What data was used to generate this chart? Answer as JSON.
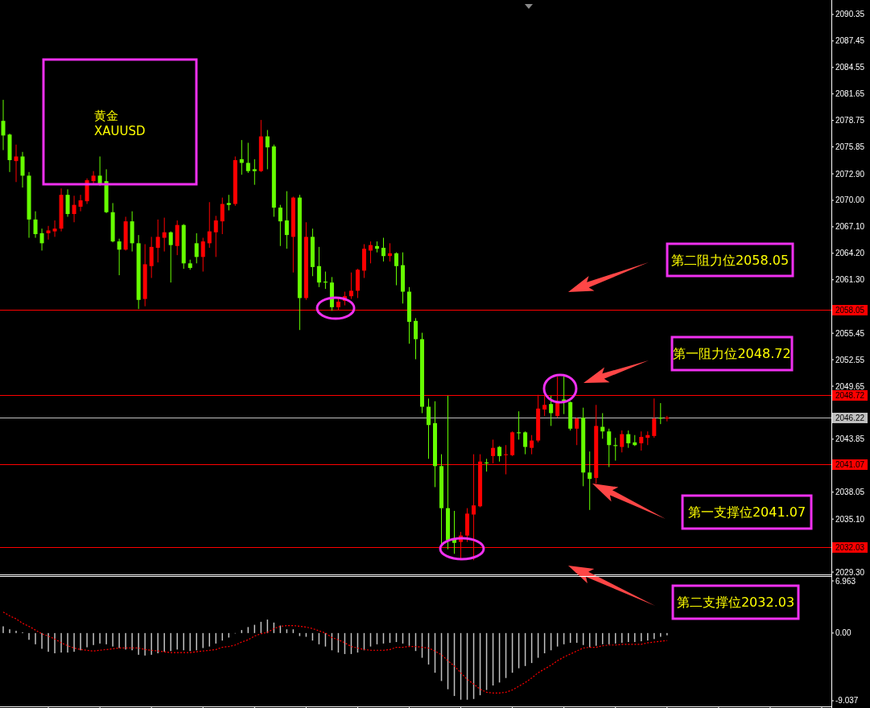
{
  "chart_data": [
    {
      "type": "candlestick",
      "title": "黄金",
      "subtitle": "XAUUSD",
      "categories": [
        null,
        null,
        null,
        null,
        null,
        null,
        null,
        null,
        null,
        null,
        null,
        null,
        null,
        null,
        null,
        null,
        null,
        null,
        null,
        null,
        null,
        null,
        null,
        null,
        null,
        null,
        null,
        null,
        null,
        null,
        null,
        null,
        null,
        null,
        null,
        null,
        null,
        null,
        null,
        null,
        null,
        null,
        null,
        null,
        null,
        null,
        null,
        null,
        null,
        null,
        null,
        null,
        null,
        null,
        null,
        null,
        null,
        null,
        null,
        null,
        null,
        null,
        null,
        null,
        null,
        null,
        null,
        null,
        null,
        null,
        null,
        null,
        null,
        null,
        null,
        null,
        null,
        null,
        null,
        null,
        null,
        null,
        null,
        null,
        null,
        null,
        null,
        null,
        null,
        null,
        null,
        null,
        null,
        null,
        null,
        null,
        null,
        null,
        null,
        null,
        null,
        null,
        null,
        null,
        null,
        null,
        null,
        null,
        null,
        null,
        null,
        null,
        null,
        null,
        null,
        null,
        null,
        null,
        null,
        null,
        null,
        null,
        null,
        null,
        null,
        null,
        null,
        null,
        null
      ],
      "ohlc": [
        [
          2078.7,
          2081.0,
          2075.5,
          2077.1
        ],
        [
          2077.2,
          2077.3,
          2073.1,
          2074.4
        ],
        [
          2074.3,
          2076.1,
          2072.0,
          2074.8
        ],
        [
          2074.8,
          2075.3,
          2071.4,
          2072.7
        ],
        [
          2072.7,
          2073.1,
          2065.9,
          2067.9
        ],
        [
          2067.9,
          2068.8,
          2065.9,
          2066.3
        ],
        [
          2066.4,
          2066.9,
          2064.5,
          2065.3
        ],
        [
          2066.4,
          2067.2,
          2065.7,
          2066.7
        ],
        [
          2066.6,
          2067.8,
          2066.0,
          2066.9
        ],
        [
          2066.9,
          2071.3,
          2066.6,
          2070.6
        ],
        [
          2070.6,
          2071.2,
          2068.2,
          2068.5
        ],
        [
          2068.5,
          2070.5,
          2067.6,
          2069.5
        ],
        [
          2069.3,
          2070.6,
          2068.8,
          2070.0
        ],
        [
          2069.9,
          2072.4,
          2069.6,
          2072.2
        ],
        [
          2072.1,
          2073.2,
          2071.8,
          2072.7
        ],
        [
          2072.7,
          2074.8,
          2071.6,
          2071.7
        ],
        [
          2072.1,
          2073.4,
          2068.6,
          2068.7
        ],
        [
          2068.7,
          2069.7,
          2065.4,
          2065.5
        ],
        [
          2065.5,
          2065.8,
          2061.8,
          2064.6
        ],
        [
          2064.6,
          2068.2,
          2064.5,
          2067.7
        ],
        [
          2067.7,
          2068.8,
          2064.4,
          2065.3
        ],
        [
          2065.3,
          2066.2,
          2058.1,
          2059.1
        ],
        [
          2059.2,
          2065.2,
          2058.4,
          2063.0
        ],
        [
          2062.8,
          2066.0,
          2061.5,
          2064.9
        ],
        [
          2064.8,
          2067.9,
          2063.2,
          2066.0
        ],
        [
          2065.9,
          2068.1,
          2064.4,
          2066.5
        ],
        [
          2066.5,
          2066.6,
          2061.0,
          2065.1
        ],
        [
          2065.0,
          2067.8,
          2064.0,
          2067.3
        ],
        [
          2067.3,
          2067.4,
          2062.5,
          2063.1
        ],
        [
          2063.1,
          2063.5,
          2062.4,
          2062.6
        ],
        [
          2065.3,
          2066.4,
          2063.1,
          2063.8
        ],
        [
          2063.8,
          2065.9,
          2062.2,
          2065.5
        ],
        [
          2065.3,
          2069.8,
          2064.8,
          2066.6
        ],
        [
          2066.5,
          2068.3,
          2063.8,
          2067.8
        ],
        [
          2067.7,
          2070.3,
          2066.3,
          2069.6
        ],
        [
          2069.7,
          2070.6,
          2068.9,
          2069.5
        ],
        [
          2069.6,
          2074.8,
          2069.4,
          2074.4
        ],
        [
          2074.5,
          2076.6,
          2072.8,
          2074.1
        ],
        [
          2074.1,
          2076.3,
          2073.0,
          2073.2
        ],
        [
          2073.4,
          2074.5,
          2071.7,
          2073.2
        ],
        [
          2073.2,
          2078.8,
          2073.1,
          2077.0
        ],
        [
          2077.0,
          2077.7,
          2073.4,
          2075.8
        ],
        [
          2075.9,
          2076.1,
          2068.2,
          2069.2
        ],
        [
          2069.2,
          2069.5,
          2065.0,
          2067.7
        ],
        [
          2067.8,
          2071.0,
          2064.7,
          2066.2
        ],
        [
          2066.0,
          2070.4,
          2062.1,
          2070.3
        ],
        [
          2070.3,
          2070.6,
          2055.8,
          2059.3
        ],
        [
          2059.3,
          2067.6,
          2059.1,
          2066.0
        ],
        [
          2066.0,
          2066.9,
          2061.7,
          2062.7
        ],
        [
          2062.8,
          2064.9,
          2060.5,
          2061.0
        ],
        [
          2061.1,
          2062.2,
          2060.3,
          2061.0
        ],
        [
          2061.0,
          2061.6,
          2057.9,
          2058.3
        ],
        [
          2058.3,
          2059.3,
          2058.0,
          2058.9
        ],
        [
          2059.0,
          2060.0,
          2058.5,
          2059.5
        ],
        [
          2059.5,
          2062.1,
          2059.2,
          2060.1
        ],
        [
          2060.1,
          2062.5,
          2059.3,
          2062.4
        ],
        [
          2062.3,
          2065.2,
          2061.5,
          2064.7
        ],
        [
          2064.5,
          2065.5,
          2063.1,
          2065.1
        ],
        [
          2065.0,
          2065.5,
          2064.3,
          2064.7
        ],
        [
          2064.8,
          2065.9,
          2063.3,
          2063.9
        ],
        [
          2063.9,
          2065.3,
          2063.3,
          2064.2
        ],
        [
          2064.2,
          2064.3,
          2060.7,
          2062.8
        ],
        [
          2062.9,
          2064.3,
          2058.7,
          2060.0
        ],
        [
          2060.0,
          2060.5,
          2054.3,
          2056.7
        ],
        [
          2056.8,
          2057.1,
          2052.6,
          2054.8
        ],
        [
          2054.8,
          2055.5,
          2046.7,
          2047.4
        ],
        [
          2047.4,
          2048.3,
          2041.7,
          2045.4
        ],
        [
          2045.6,
          2048.0,
          2038.6,
          2040.9
        ],
        [
          2040.9,
          2042.2,
          2032.2,
          2036.3
        ],
        [
          2036.3,
          2048.6,
          2031.8,
          2032.8
        ],
        [
          2032.9,
          2036.0,
          2031.3,
          2032.5
        ],
        [
          2032.6,
          2033.7,
          2030.6,
          2033.3
        ],
        [
          2033.3,
          2036.3,
          2032.6,
          2035.7
        ],
        [
          2035.6,
          2042.2,
          2030.6,
          2036.6
        ],
        [
          2036.5,
          2042.2,
          2036.4,
          2041.4
        ],
        [
          2041.3,
          2041.7,
          2040.3,
          2041.2
        ],
        [
          2042.0,
          2043.8,
          2041.2,
          2042.9
        ],
        [
          2043.0,
          2043.1,
          2041.4,
          2042.0
        ],
        [
          2042.1,
          2043.2,
          2040.0,
          2042.2
        ],
        [
          2042.1,
          2044.7,
          2042.0,
          2044.6
        ],
        [
          2044.6,
          2046.9,
          2043.8,
          2044.5
        ],
        [
          2044.6,
          2044.7,
          2042.2,
          2043.0
        ],
        [
          2042.9,
          2044.3,
          2042.2,
          2043.7
        ],
        [
          2043.7,
          2048.7,
          2043.5,
          2047.2
        ],
        [
          2047.1,
          2048.6,
          2046.4,
          2047.6
        ],
        [
          2047.7,
          2048.6,
          2045.3,
          2046.7
        ],
        [
          2046.4,
          2050.7,
          2046.2,
          2047.8
        ],
        [
          2048.2,
          2050.7,
          2046.6,
          2048.0
        ],
        [
          2047.9,
          2048.0,
          2044.8,
          2045.0
        ],
        [
          2045.0,
          2046.2,
          2043.2,
          2046.1
        ],
        [
          2046.2,
          2047.3,
          2038.7,
          2040.2
        ],
        [
          2040.2,
          2042.5,
          2036.1,
          2039.5
        ],
        [
          2039.6,
          2047.6,
          2039.0,
          2045.3
        ],
        [
          2045.2,
          2046.7,
          2043.9,
          2044.7
        ],
        [
          2044.7,
          2045.0,
          2040.8,
          2043.2
        ],
        [
          2043.2,
          2044.0,
          2041.5,
          2043.1
        ],
        [
          2043.0,
          2044.8,
          2042.4,
          2044.4
        ],
        [
          2044.4,
          2044.8,
          2042.9,
          2043.4
        ],
        [
          2043.5,
          2044.3,
          2043.1,
          2043.2
        ],
        [
          2043.4,
          2044.7,
          2042.6,
          2044.1
        ],
        [
          2044.0,
          2044.7,
          2043.2,
          2044.3
        ],
        [
          2044.2,
          2048.3,
          2044.0,
          2046.1
        ],
        [
          2046.2,
          2047.8,
          2045.5,
          2046.1
        ],
        [
          2046.1,
          2046.4,
          2045.8,
          2046.22
        ],
        null,
        null,
        null,
        null,
        null,
        null,
        null,
        null,
        null,
        null,
        null,
        null,
        null,
        null,
        null,
        null,
        null,
        null,
        null,
        null,
        null,
        null,
        null,
        null,
        null
      ],
      "colors": [
        "#66ff00",
        "#66ff00",
        "#ff0000",
        "#66ff00",
        "#66ff00",
        "#66ff00",
        "#66ff00",
        "#ff0000",
        "#ff0000",
        "#ff0000",
        "#66ff00",
        "#ff0000",
        "#ff0000",
        "#ff0000",
        "#ff0000",
        "#66ff00",
        "#66ff00",
        "#66ff00",
        "#66ff00",
        "#ff0000",
        "#66ff00",
        "#66ff00",
        "#ff0000",
        "#ff0000",
        "#ff0000",
        "#ff0000",
        "#66ff00",
        "#ff0000",
        "#66ff00",
        "#66ff00",
        "#66ff00",
        "#ff0000",
        "#ff0000",
        "#ff0000",
        "#ff0000",
        "#66ff00",
        "#ff0000",
        "#66ff00",
        "#66ff00",
        "#66ff00",
        "#ff0000",
        "#66ff00",
        "#66ff00",
        "#66ff00",
        "#66ff00",
        "#ff0000",
        "#66ff00",
        "#ff0000",
        "#66ff00",
        "#66ff00",
        "#66ff00",
        "#66ff00",
        "#ff0000",
        "#ff0000",
        "#ff0000",
        "#ff0000",
        "#ff0000",
        "#ff0000",
        "#66ff00",
        "#66ff00",
        "#ff0000",
        "#66ff00",
        "#66ff00",
        "#66ff00",
        "#66ff00",
        "#66ff00",
        "#66ff00",
        "#66ff00",
        "#66ff00",
        "#66ff00",
        "#66ff00",
        "#ff0000",
        "#ff0000",
        "#ff0000",
        "#ff0000",
        "#66ff00",
        "#ff0000",
        "#66ff00",
        "#ff0000",
        "#ff0000",
        "#66ff00",
        "#66ff00",
        "#ff0000",
        "#ff0000",
        "#ff0000",
        "#66ff00",
        "#ff0000",
        "#66ff00",
        "#66ff00",
        "#ff0000",
        "#66ff00",
        "#66ff00",
        "#ff0000",
        "#66ff00",
        "#66ff00",
        "#66ff00",
        "#ff0000",
        "#66ff00",
        "#66ff00",
        "#ff0000",
        "#ff0000",
        "#ff0000",
        "#66ff00",
        "#ff0000",
        null,
        null,
        null,
        null,
        null,
        null,
        null,
        null,
        null,
        null,
        null,
        null,
        null,
        null,
        null,
        null,
        null,
        null,
        null,
        null,
        null,
        null,
        null,
        null,
        null
      ],
      "ylim": [
        2029.04,
        2091.58
      ],
      "yticks": [
        2090.35,
        2087.45,
        2084.55,
        2081.65,
        2078.75,
        2075.85,
        {
          "value": 2072.9,
          "label": "2072.90"
        },
        {
          "value": 2070,
          "label": "2070.00"
        },
        {
          "value": 2067.1,
          "label": "2067.10"
        },
        {
          "value": 2064.2,
          "label": "2064.20"
        },
        {
          "value": 2061.3,
          "label": "2061.30"
        },
        2055.45,
        2052.55,
        2049.65,
        2043.85,
        2038.05,
        {
          "value": 2035.1,
          "label": "2035.10"
        },
        {
          "value": 2029.3,
          "label": "2029.30"
        }
      ],
      "ref_lines": [
        {
          "axis": "y",
          "value": 2058.05,
          "label": "2058.05",
          "color": "#ff0000"
        },
        {
          "axis": "y",
          "value": 2048.72,
          "label": "2048.72",
          "color": "#ff0000"
        },
        {
          "axis": "y",
          "value": 2046.22,
          "label": "2046.22",
          "color": "#c0c0c0"
        },
        {
          "axis": "y",
          "value": 2041.07,
          "label": "2041.07",
          "color": "#ff0000"
        },
        {
          "axis": "y",
          "value": 2032.03,
          "label": "2032.03",
          "color": "#ff0000"
        }
      ],
      "annotations": [
        "第二阻力位2058.05",
        "第一阻力位2048.72",
        "第一支撑位2041.07",
        "第二支撑位2032.03"
      ],
      "tick_labels": "y"
    },
    {
      "type": "bar",
      "categories": [
        null,
        null,
        null,
        null,
        null,
        null,
        null,
        null,
        null,
        null,
        null,
        null,
        null,
        null,
        null,
        null,
        null,
        null,
        null,
        null,
        null,
        null,
        null,
        null,
        null,
        null,
        null,
        null,
        null,
        null,
        null,
        null,
        null,
        null,
        null,
        null,
        null,
        null,
        null,
        null,
        null,
        null,
        null,
        null,
        null,
        null,
        null,
        null,
        null,
        null,
        null,
        null,
        null,
        null,
        null,
        null,
        null,
        null,
        null,
        null,
        null,
        null,
        null,
        null,
        null,
        null,
        null,
        null,
        null,
        null,
        null,
        null,
        null,
        null,
        null,
        null,
        null,
        null,
        null,
        null,
        null,
        null,
        null,
        null,
        null,
        null,
        null,
        null,
        null,
        null,
        null,
        null,
        null,
        null,
        null,
        null,
        null,
        null,
        null,
        null,
        null,
        null,
        null,
        null,
        null,
        null,
        null,
        null,
        null,
        null,
        null,
        null,
        null,
        null,
        null,
        null,
        null,
        null,
        null,
        null,
        null,
        null,
        null,
        null,
        null,
        null,
        null,
        null,
        null
      ],
      "series": [
        {
          "type": "bar",
          "color": "#c0c0c0",
          "values": [
            0.9,
            0.5,
            0.3,
            0.1,
            -0.9,
            -1.5,
            -2.1,
            -2.5,
            -2.7,
            -2.6,
            -2.6,
            -2.5,
            -2.3,
            -1.9,
            -1.6,
            -1.4,
            -1.5,
            -1.8,
            -2.0,
            -2.2,
            -2.3,
            -2.9,
            -3.0,
            -2.9,
            -2.7,
            -2.5,
            -2.4,
            -2.2,
            -2.3,
            -2.4,
            -2.3,
            -2.0,
            -1.8,
            -1.4,
            -1.0,
            -0.6,
            0.0,
            0.4,
            0.8,
            1.1,
            1.5,
            1.8,
            1.4,
            1.0,
            0.5,
            0.5,
            -0.4,
            -0.5,
            -1.0,
            -1.5,
            -1.8,
            -2.3,
            -2.6,
            -2.8,
            -2.8,
            -2.6,
            -2.3,
            -1.8,
            -1.5,
            -1.4,
            -1.3,
            -1.2,
            -1.4,
            -1.7,
            -2.4,
            -3.3,
            -4.2,
            -5.3,
            -6.4,
            -7.5,
            -8.4,
            -8.9,
            -8.9,
            -8.8,
            -8.3,
            -7.6,
            -7.0,
            -6.6,
            -6.0,
            -5.3,
            -4.7,
            -4.4,
            -4.0,
            -3.3,
            -2.7,
            -2.3,
            -1.8,
            -1.5,
            -1.3,
            -1.3,
            -1.6,
            -1.9,
            -1.7,
            -1.5,
            -1.5,
            -1.4,
            -1.3,
            -1.2,
            -1.2,
            -1.1,
            -1.0,
            -0.8,
            -0.5,
            -0.3,
            null,
            null,
            null,
            null,
            null,
            null,
            null,
            null,
            null,
            null,
            null,
            null,
            null,
            null,
            null,
            null,
            null,
            null,
            null,
            null,
            null,
            null,
            null,
            null,
            null
          ]
        },
        {
          "type": "line",
          "color": "#ff0000",
          "line_style": "dotted",
          "values": [
            2.8,
            2.3,
            1.9,
            1.3,
            0.9,
            0.4,
            -0.1,
            -0.4,
            -0.8,
            -1.3,
            -1.7,
            -2.0,
            -2.2,
            -2.3,
            -2.4,
            -2.3,
            -2.2,
            -2.1,
            -2.0,
            -2.0,
            -2.0,
            -2.0,
            -2.2,
            -2.3,
            -2.4,
            -2.5,
            -2.6,
            -2.6,
            -2.6,
            -2.6,
            -2.5,
            -2.4,
            -2.3,
            -2.2,
            -1.9,
            -1.8,
            -1.6,
            -1.2,
            -0.9,
            -0.4,
            -0.1,
            0.1,
            0.6,
            0.9,
            1.0,
            1.0,
            0.9,
            0.8,
            0.6,
            0.3,
            0.0,
            -0.6,
            -0.9,
            -1.3,
            -1.8,
            -2.0,
            -2.2,
            -2.3,
            -2.3,
            -2.3,
            -2.2,
            -1.9,
            -1.9,
            -1.8,
            -1.8,
            -1.9,
            -2.0,
            -2.4,
            -2.9,
            -3.7,
            -4.4,
            -5.3,
            -6.2,
            -6.8,
            -7.5,
            -7.9,
            -8.0,
            -8.0,
            -7.9,
            -7.6,
            -7.1,
            -6.6,
            -6.0,
            -5.3,
            -4.8,
            -4.3,
            -3.7,
            -3.2,
            -2.8,
            -2.4,
            -2.0,
            -1.9,
            -1.9,
            -1.7,
            -1.6,
            -1.6,
            -1.5,
            -1.5,
            -1.5,
            -1.5,
            -1.3,
            -1.2,
            -1.1,
            -1.0,
            null,
            null,
            null,
            null,
            null,
            null,
            null,
            null,
            null,
            null,
            null,
            null,
            null,
            null,
            null,
            null,
            null,
            null,
            null,
            null,
            null,
            null,
            null,
            null,
            null
          ]
        }
      ],
      "ylim": [
        -9.79,
        7.61
      ],
      "yticks": [
        6.963,
        {
          "value": 0,
          "label": "0.00"
        },
        -9.037
      ],
      "tick_labels": "y"
    }
  ]
}
